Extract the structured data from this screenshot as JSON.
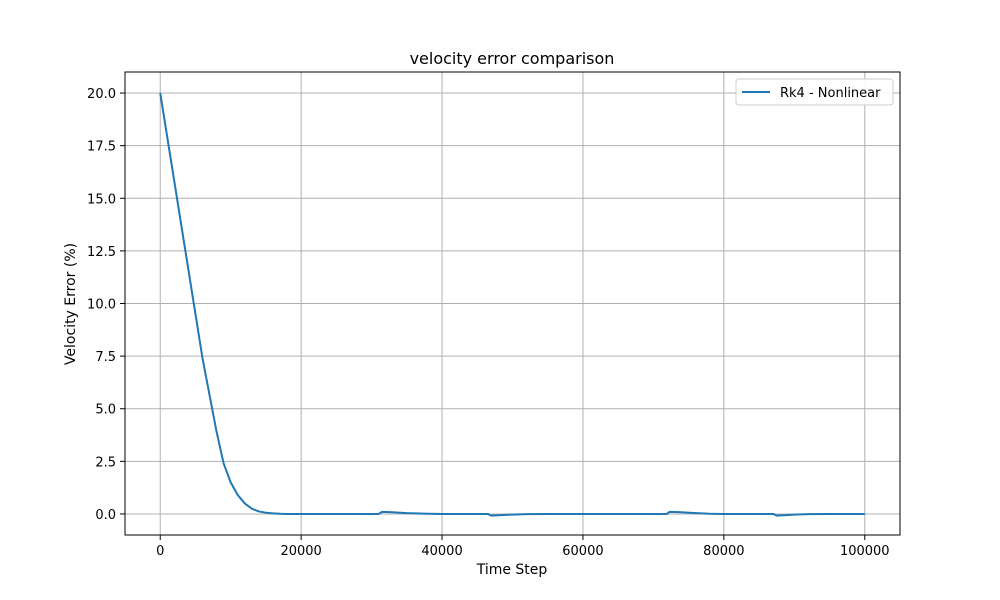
{
  "chart_data": {
    "type": "line",
    "title": "velocity error comparison",
    "xlabel": "Time Step",
    "ylabel": "Velocity Error (%)",
    "xlim": [
      -5000,
      105000
    ],
    "ylim": [
      -1.0,
      21.0
    ],
    "xticks": [
      0,
      20000,
      40000,
      60000,
      80000,
      100000
    ],
    "yticks": [
      0.0,
      2.5,
      5.0,
      7.5,
      10.0,
      12.5,
      15.0,
      17.5,
      20.0
    ],
    "xtick_labels": [
      "0",
      "20000",
      "40000",
      "60000",
      "80000",
      "100000"
    ],
    "ytick_labels": [
      "0.0",
      "2.5",
      "5.0",
      "7.5",
      "10.0",
      "12.5",
      "15.0",
      "17.5",
      "20.0"
    ],
    "grid": true,
    "legend": "top-right",
    "series": [
      {
        "name": "Rk4 - Nonlinear",
        "color": "#1f77b4",
        "x": [
          0,
          2000,
          4000,
          6000,
          8000,
          9000,
          10000,
          11000,
          12000,
          13000,
          14000,
          15000,
          16000,
          17000,
          18000,
          20000,
          25000,
          30000,
          31000,
          31500,
          33000,
          35000,
          38000,
          40000,
          45000,
          46500,
          47000,
          48000,
          50000,
          52000,
          55000,
          60000,
          65000,
          70000,
          71900,
          72300,
          74000,
          76000,
          78000,
          80000,
          85000,
          87000,
          87500,
          88500,
          90000,
          92000,
          95000,
          100000
        ],
        "y": [
          20.0,
          15.8,
          11.6,
          7.4,
          3.9,
          2.4,
          1.5,
          0.9,
          0.5,
          0.25,
          0.12,
          0.06,
          0.03,
          0.01,
          0.0,
          0.0,
          0.0,
          0.0,
          0.0,
          0.1,
          0.08,
          0.04,
          0.01,
          0.0,
          0.0,
          0.0,
          -0.08,
          -0.06,
          -0.03,
          -0.01,
          0.0,
          0.0,
          0.0,
          0.0,
          0.0,
          0.1,
          0.08,
          0.04,
          0.01,
          0.0,
          0.0,
          0.0,
          -0.08,
          -0.06,
          -0.03,
          -0.01,
          0.0,
          0.0
        ]
      }
    ]
  }
}
